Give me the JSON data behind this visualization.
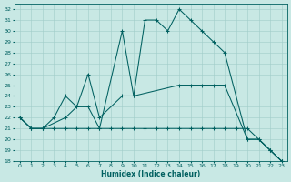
{
  "xlabel": "Humidex (Indice chaleur)",
  "xlim_min": -0.5,
  "xlim_max": 23.5,
  "ylim_min": 18,
  "ylim_max": 32.5,
  "bg_color": "#c8e8e4",
  "line_color": "#006060",
  "grid_color": "#a0ccc8",
  "xticks": [
    0,
    1,
    2,
    3,
    4,
    5,
    6,
    7,
    8,
    9,
    10,
    11,
    12,
    13,
    14,
    15,
    16,
    17,
    18,
    19,
    20,
    21,
    22,
    23
  ],
  "yticks": [
    18,
    19,
    20,
    21,
    22,
    23,
    24,
    25,
    26,
    27,
    28,
    29,
    30,
    31,
    32
  ],
  "series": [
    {
      "x": [
        0,
        1,
        2,
        4,
        5,
        6,
        7,
        9,
        10,
        11,
        12,
        13,
        14,
        15,
        16,
        17,
        18,
        20,
        21,
        22,
        23
      ],
      "y": [
        22,
        21,
        21,
        22,
        23,
        23,
        21,
        30,
        24,
        31,
        31,
        30,
        32,
        31,
        30,
        29,
        28,
        20,
        20,
        19,
        18
      ]
    },
    {
      "x": [
        0,
        1,
        2,
        3,
        4,
        5,
        6,
        7,
        9,
        10,
        14,
        15,
        16,
        17,
        18,
        20,
        21,
        22,
        23
      ],
      "y": [
        22,
        21,
        21,
        22,
        24,
        23,
        26,
        22,
        24,
        24,
        25,
        25,
        25,
        25,
        25,
        20,
        20,
        19,
        18
      ]
    },
    {
      "x": [
        0,
        1,
        2,
        3,
        4,
        5,
        6,
        7,
        8,
        9,
        10,
        11,
        12,
        13,
        14,
        15,
        16,
        17,
        18,
        19,
        20,
        22,
        23
      ],
      "y": [
        22,
        21,
        21,
        21,
        21,
        21,
        21,
        21,
        21,
        21,
        21,
        21,
        21,
        21,
        21,
        21,
        21,
        21,
        21,
        21,
        21,
        19,
        18
      ]
    }
  ]
}
